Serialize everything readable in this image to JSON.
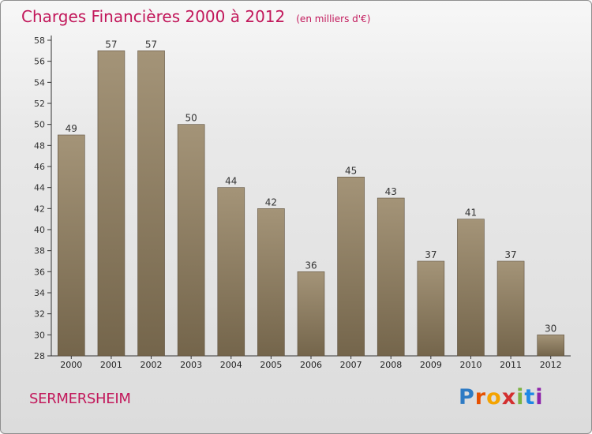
{
  "header": {
    "title": "Charges Financières 2000 à 2012",
    "subtitle": "(en milliers d'€)"
  },
  "footer": {
    "location": "SERMERSHEIM",
    "brand_letters": [
      "P",
      "r",
      "o",
      "x",
      "i",
      "t",
      "i"
    ],
    "brand_colors": [
      "#2e7bc4",
      "#e65100",
      "#f4a300",
      "#d32f2f",
      "#7cb342",
      "#1e88e5",
      "#8e24aa"
    ]
  },
  "colors": {
    "title": "#c2185b",
    "bar_top": "#a49478",
    "bar_bottom": "#74654b"
  },
  "chart_data": {
    "type": "bar",
    "title": "Charges Financières 2000 à 2012",
    "subtitle": "(en milliers d'€)",
    "categories": [
      "2000",
      "2001",
      "2002",
      "2003",
      "2004",
      "2005",
      "2006",
      "2007",
      "2008",
      "2009",
      "2010",
      "2011",
      "2012"
    ],
    "values": [
      49,
      57,
      57,
      50,
      44,
      42,
      36,
      45,
      43,
      37,
      41,
      37,
      30
    ],
    "ylim": [
      28,
      58
    ],
    "yticks": [
      28,
      30,
      32,
      34,
      36,
      38,
      40,
      42,
      44,
      46,
      48,
      50,
      52,
      54,
      56,
      58
    ],
    "grid": false,
    "data_labels": true
  }
}
